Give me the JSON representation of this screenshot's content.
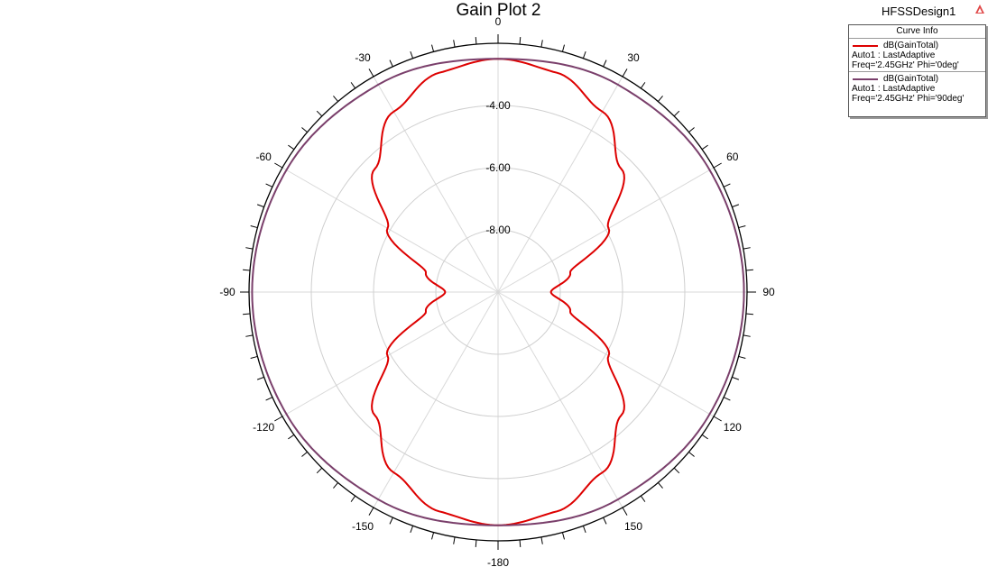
{
  "title": "Gain Plot 2",
  "design_name": "HFSSDesign1",
  "legend": {
    "header": "Curve Info",
    "entries": [
      {
        "name": "dB(GainTotal)",
        "line2": "Auto1 : LastAdaptive",
        "line3": "Freq='2.45GHz' Phi='0deg'",
        "color": "#dd0000"
      },
      {
        "name": "dB(GainTotal)",
        "line2": "Auto1 : LastAdaptive",
        "line3": "Freq='2.45GHz' Phi='90deg'",
        "color": "#7a3f6b"
      }
    ]
  },
  "chart_data": {
    "type": "polar-line",
    "title": "Gain Plot 2",
    "angle_ticks": [
      "0",
      "30",
      "60",
      "90",
      "120",
      "150",
      "-180",
      "-150",
      "-120",
      "-90",
      "-60",
      "-30"
    ],
    "angle_tick_values": [
      0,
      30,
      60,
      90,
      120,
      150,
      180,
      -150,
      -120,
      -90,
      -60,
      -30
    ],
    "radial_ticks": [
      "-4.00",
      "-6.00",
      "-8.00"
    ],
    "radial_tick_values": [
      -4,
      -6,
      -8
    ],
    "r_range": [
      -10,
      -2
    ],
    "theta_zero": "top",
    "theta_direction": "clockwise",
    "grid": true,
    "legend_position": "top-right",
    "series": [
      {
        "name": "dB(GainTotal) Freq='2.45GHz' Phi='0deg'",
        "color": "#dd0000",
        "theta": [
          0,
          15,
          30,
          45,
          60,
          75,
          90,
          105,
          120,
          135,
          150,
          165,
          180
        ],
        "r": [
          -2.5,
          -2.7,
          -3.3,
          -4.4,
          -5.9,
          -7.6,
          -8.3,
          -7.6,
          -5.9,
          -4.4,
          -3.3,
          -2.7,
          -2.5
        ]
      },
      {
        "name": "dB(GainTotal) Freq='2.45GHz' Phi='90deg'",
        "color": "#7a3f6b",
        "theta": [
          0,
          30,
          60,
          90,
          120,
          150,
          180
        ],
        "r": [
          -2.5,
          -2.3,
          -2.15,
          -2.1,
          -2.15,
          -2.3,
          -2.5
        ]
      }
    ]
  }
}
